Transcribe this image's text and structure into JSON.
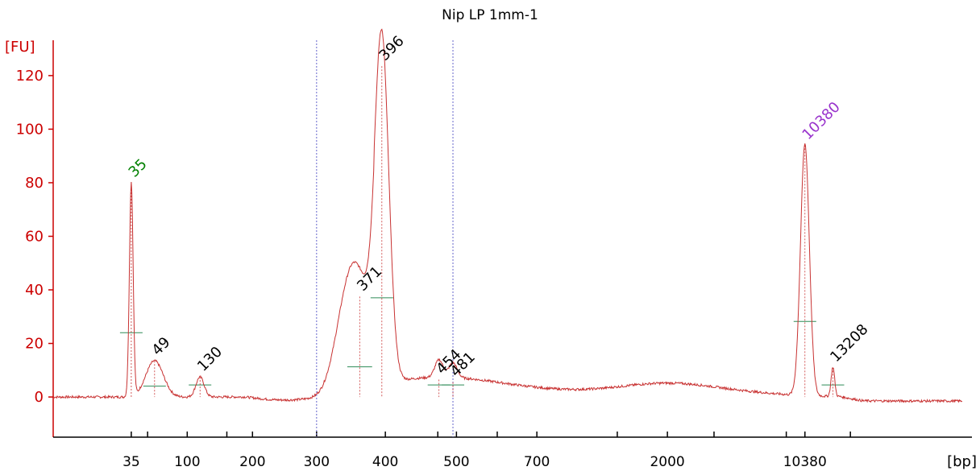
{
  "chart_data": {
    "type": "line",
    "title": "Nip LP 1mm-1",
    "ylabel": "[FU]",
    "xlabel": "[bp]",
    "ylim": [
      -15,
      135
    ],
    "y_ticks": [
      0,
      20,
      40,
      60,
      80,
      100,
      120
    ],
    "x_tick_labels": [
      {
        "label": "35",
        "time": 40.2
      },
      {
        "label": "",
        "time": 41.6
      },
      {
        "label": "100",
        "time": 45.0
      },
      {
        "label": "",
        "time": 48.4
      },
      {
        "label": "200",
        "time": 50.6
      },
      {
        "label": "300",
        "time": 56.1
      },
      {
        "label": "400",
        "time": 62.0
      },
      {
        "label": "",
        "time": 66.5
      },
      {
        "label": "500",
        "time": 68.1
      },
      {
        "label": "",
        "time": 71.6
      },
      {
        "label": "700",
        "time": 75.0
      },
      {
        "label": "",
        "time": 81.9
      },
      {
        "label": "2000",
        "time": 86.2
      },
      {
        "label": "",
        "time": 90.2
      },
      {
        "label": "",
        "time": 96.4
      },
      {
        "label": "10380",
        "time": 98.0
      },
      {
        "label": "",
        "time": 101.9
      }
    ],
    "x_time_range": [
      33.5,
      111.5
    ],
    "peaks": [
      {
        "label": "35",
        "time": 40.2,
        "height": 80,
        "width": 0.16,
        "color": "#008000"
      },
      {
        "label": "49",
        "time": 42.2,
        "height": 13.5,
        "width": 0.75,
        "color": "#000000"
      },
      {
        "label": "130",
        "time": 46.1,
        "height": 7.5,
        "width": 0.35,
        "color": "#000000"
      },
      {
        "label": "371",
        "time": 59.8,
        "height": 37.5,
        "width": 1.1,
        "color": "#000000"
      },
      {
        "label": "396",
        "time": 61.7,
        "height": 123.5,
        "width": 0.6,
        "color": "#000000"
      },
      {
        "label": "454",
        "time": 66.6,
        "height": 6.5,
        "width": 0.35,
        "color": "#000000"
      },
      {
        "label": "481",
        "time": 67.8,
        "height": 5.5,
        "width": 0.35,
        "color": "#000000"
      },
      {
        "label": "10380",
        "time": 98.0,
        "height": 94,
        "width": 0.38,
        "color": "#9933cc"
      },
      {
        "label": "13208",
        "time": 100.4,
        "height": 11,
        "width": 0.15,
        "color": "#000000"
      }
    ],
    "region_markers": [
      56.1,
      67.8
    ],
    "grid": false,
    "legend": "none"
  }
}
